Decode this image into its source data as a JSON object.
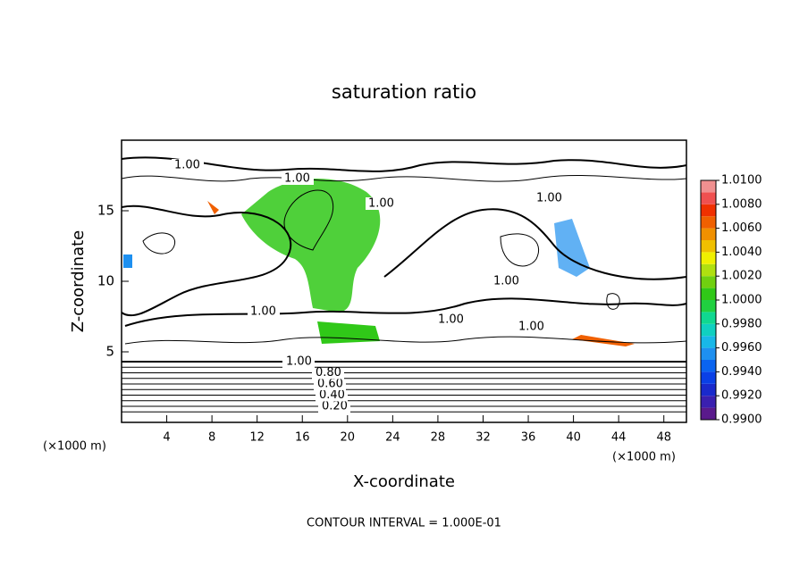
{
  "chart_data": {
    "type": "contour",
    "title": "saturation ratio",
    "xlabel": "X-coordinate",
    "ylabel": "Z-coordinate",
    "x_unit": "(×1000 m)",
    "annotation": "CONTOUR INTERVAL = 1.000E-01",
    "xlim": [
      0,
      50
    ],
    "xticks": [
      4,
      8,
      12,
      16,
      20,
      24,
      28,
      32,
      36,
      40,
      44,
      48
    ],
    "ylim": [
      0,
      20
    ],
    "yticks": [
      5,
      10,
      15
    ],
    "contour_levels": [
      0.1,
      {
        "value": 0.2,
        "label": "0.20"
      },
      0.3,
      {
        "value": 0.4,
        "label": "0.40"
      },
      0.5,
      {
        "value": 0.6,
        "label": "0.60"
      },
      0.7,
      {
        "value": 0.8,
        "label": "0.80"
      },
      0.9,
      {
        "value": 1.0,
        "label": "1.00"
      }
    ],
    "colorbar": {
      "lim": [
        0.99,
        1.01
      ],
      "ticks": [
        {
          "value": 0.99,
          "label": "0.9900"
        },
        {
          "value": 0.992,
          "label": "0.9920"
        },
        {
          "value": 0.994,
          "label": "0.9940"
        },
        {
          "value": 0.996,
          "label": "0.9960"
        },
        {
          "value": 0.998,
          "label": "0.9980"
        },
        {
          "value": 1.0,
          "label": "1.0000"
        },
        {
          "value": 1.002,
          "label": "1.0020"
        },
        {
          "value": 1.004,
          "label": "1.0040"
        },
        {
          "value": 1.006,
          "label": "1.0060"
        },
        {
          "value": 1.008,
          "label": "1.0080"
        },
        {
          "value": 1.01,
          "label": "1.0100"
        }
      ],
      "colors": [
        "#5a1a8c",
        "#3a20b0",
        "#1a2acc",
        "#0a40e6",
        "#0a64f0",
        "#1e90f0",
        "#18b8e8",
        "#10d0c0",
        "#10d890",
        "#20d040",
        "#30c818",
        "#70d010",
        "#b0e010",
        "#f0f000",
        "#f0c000",
        "#f09000",
        "#f06000",
        "#f03000",
        "#f05050",
        "#f09090"
      ]
    }
  }
}
